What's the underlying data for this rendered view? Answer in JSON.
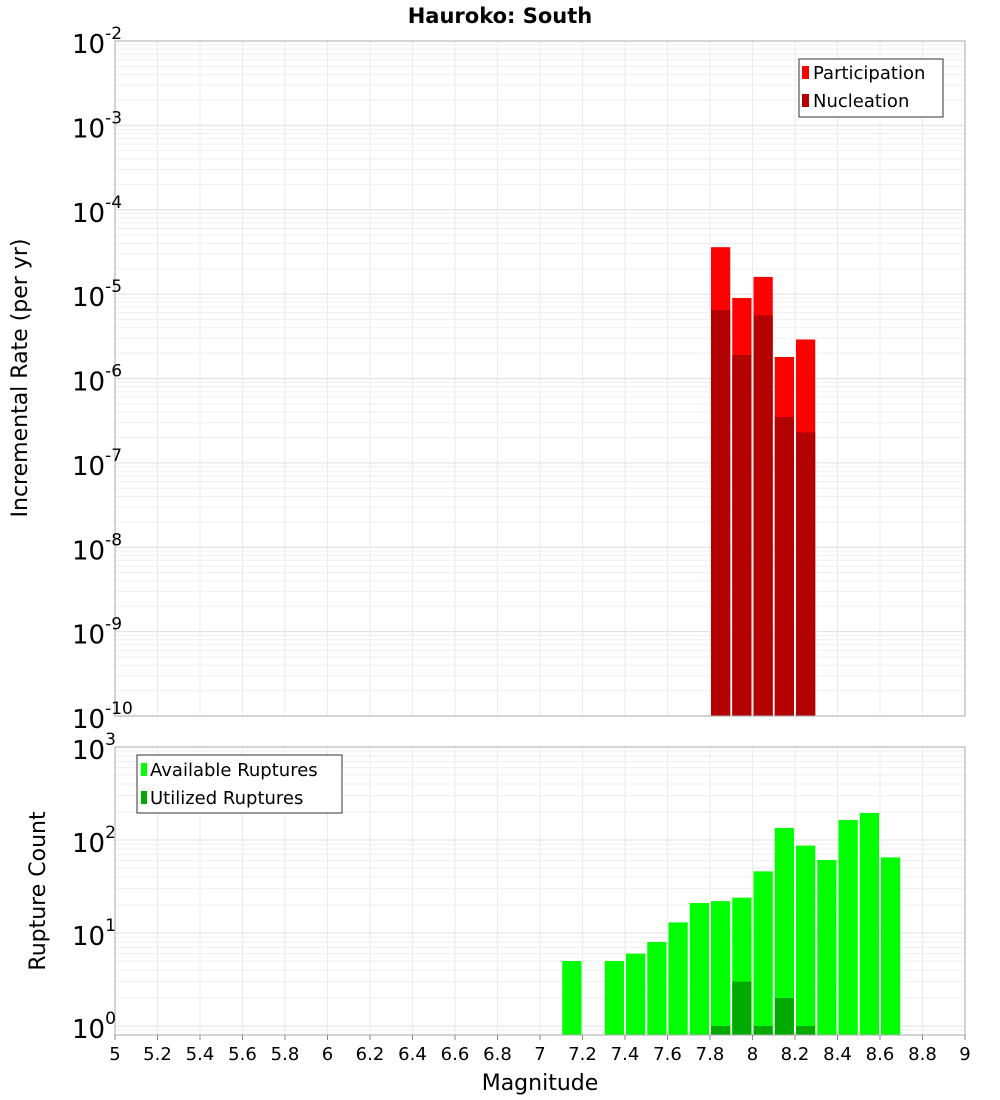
{
  "chart_data": [
    {
      "type": "bar",
      "title": "Hauroko: South",
      "xlabel": "Magnitude",
      "ylabel": "Incremental Rate (per yr)",
      "yscale": "log",
      "ylim": [
        1e-10,
        0.01
      ],
      "xlim": [
        5,
        9
      ],
      "bin_width": 0.1,
      "grid": true,
      "legend_position": "top-right",
      "series": [
        {
          "name": "Participation",
          "color": "#ff0000",
          "x": [
            7.8,
            7.9,
            8.0,
            8.1,
            8.2
          ],
          "values": [
            3.6e-05,
            9e-06,
            1.6e-05,
            1.8e-06,
            2.9e-06
          ]
        },
        {
          "name": "Nucleation",
          "color": "#b30000",
          "x": [
            7.8,
            7.9,
            8.0,
            8.1,
            8.2
          ],
          "values": [
            6.5e-06,
            1.9e-06,
            5.6e-06,
            3.5e-07,
            2.3e-07
          ]
        }
      ],
      "ytick_exponents": [
        "-2",
        "-3",
        "-4",
        "-5",
        "-6",
        "-7",
        "-8",
        "-9",
        "-10"
      ]
    },
    {
      "type": "bar",
      "xlabel": "Magnitude",
      "ylabel": "Rupture Count",
      "yscale": "log",
      "ylim": [
        0.8,
        1000
      ],
      "xlim": [
        5,
        9
      ],
      "bin_width": 0.1,
      "grid": true,
      "legend_position": "top-left",
      "series": [
        {
          "name": "Available Ruptures",
          "color": "#00ff00",
          "x": [
            7.1,
            7.3,
            7.4,
            7.5,
            7.6,
            7.7,
            7.8,
            7.9,
            8.0,
            8.1,
            8.2,
            8.3,
            8.4,
            8.5,
            8.6
          ],
          "values": [
            5,
            5,
            6,
            8,
            13,
            21,
            22,
            24,
            46,
            135,
            87,
            61,
            164,
            195,
            65
          ]
        },
        {
          "name": "Utilized Ruptures",
          "color": "#00aa00",
          "x": [
            7.8,
            7.9,
            8.0,
            8.1,
            8.2
          ],
          "values": [
            1,
            3,
            1,
            2,
            1
          ]
        }
      ],
      "ytick_exponents": [
        "3",
        "2",
        "1",
        "0"
      ],
      "xtick_labels": [
        "5",
        "5.2",
        "5.4",
        "5.6",
        "5.8",
        "6",
        "6.2",
        "6.4",
        "6.6",
        "6.8",
        "7",
        "7.2",
        "7.4",
        "7.6",
        "7.8",
        "8",
        "8.2",
        "8.4",
        "8.6",
        "8.8",
        "9"
      ]
    }
  ]
}
